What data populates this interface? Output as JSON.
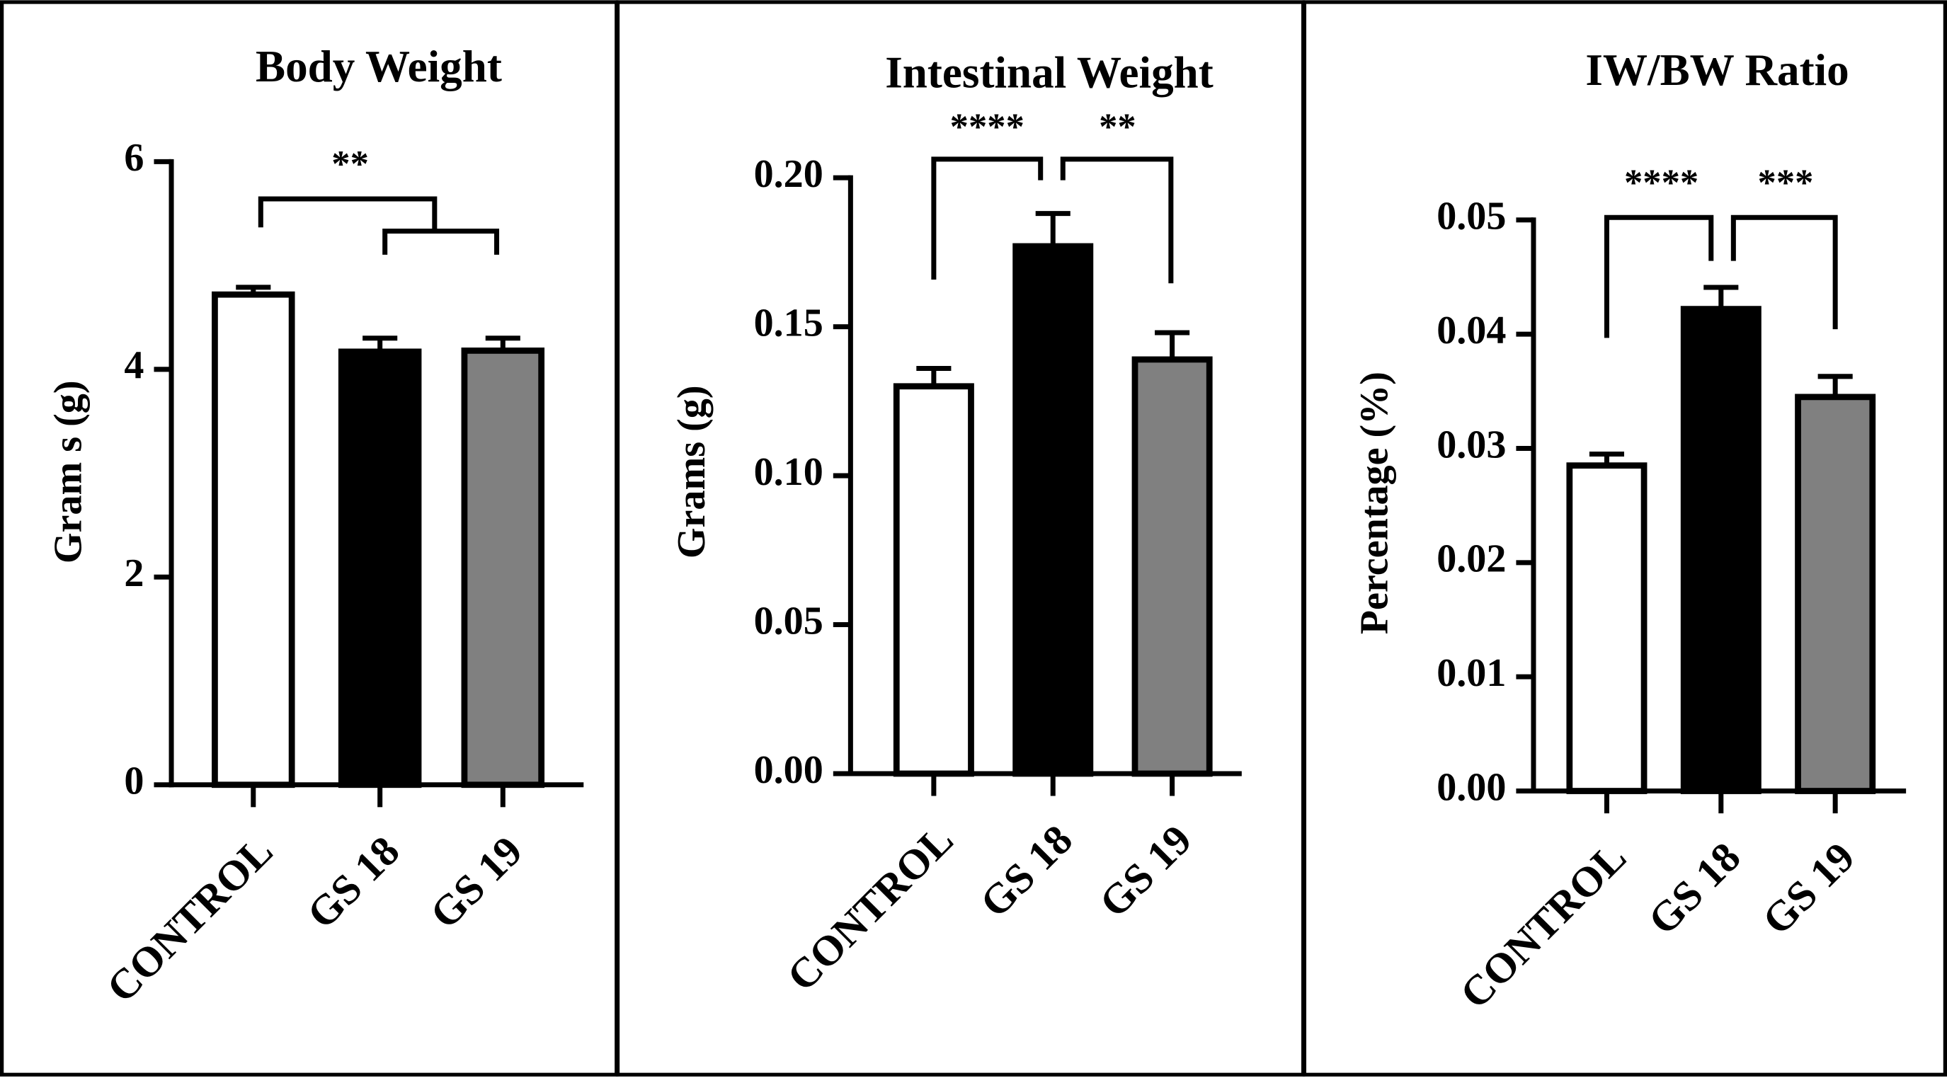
{
  "chart_data": [
    {
      "type": "bar",
      "title": "Body Weight",
      "y_label": "Gram s (g)",
      "categories": [
        "CONTROL",
        "GS 18",
        "GS 19"
      ],
      "values": [
        4.72,
        4.17,
        4.18
      ],
      "errors": [
        0.07,
        0.13,
        0.12
      ],
      "colors": [
        "#ffffff",
        "#000000",
        "#808080"
      ],
      "ylim": [
        0,
        6
      ],
      "yticks": [
        0,
        2,
        4,
        6
      ],
      "annotations": [
        "**"
      ]
    },
    {
      "type": "bar",
      "title": "Intestinal Weight",
      "y_label": "Grams (g)",
      "categories": [
        "CONTROL",
        "GS 18",
        "GS 19"
      ],
      "values": [
        0.13,
        0.177,
        0.139
      ],
      "errors": [
        0.006,
        0.011,
        0.009
      ],
      "colors": [
        "#ffffff",
        "#000000",
        "#808080"
      ],
      "ylim": [
        0,
        0.2
      ],
      "yticks": [
        {
          "value": 0,
          "label": "0.00"
        },
        {
          "value": 0.05,
          "label": "0.05"
        },
        {
          "value": 0.1,
          "label": "0.10"
        },
        {
          "value": 0.15,
          "label": "0.15"
        },
        {
          "value": 0.2,
          "label": "0.20"
        }
      ],
      "annotations": [
        "****",
        "**"
      ]
    },
    {
      "type": "bar",
      "title": "IW/BW Ratio",
      "y_label": "Percentage (%)",
      "categories": [
        "CONTROL",
        "GS 18",
        "GS 19"
      ],
      "values": [
        0.0285,
        0.0422,
        0.0345
      ],
      "errors": [
        0.001,
        0.0019,
        0.0018
      ],
      "colors": [
        "#ffffff",
        "#000000",
        "#808080"
      ],
      "ylim": [
        0,
        0.05
      ],
      "yticks": [
        {
          "value": 0,
          "label": "0.00"
        },
        {
          "value": 0.01,
          "label": "0.01"
        },
        {
          "value": 0.02,
          "label": "0.02"
        },
        {
          "value": 0.03,
          "label": "0.03"
        },
        {
          "value": 0.04,
          "label": "0.04"
        },
        {
          "value": 0.05,
          "label": "0.05"
        }
      ],
      "annotations": [
        "****",
        "***"
      ]
    }
  ]
}
